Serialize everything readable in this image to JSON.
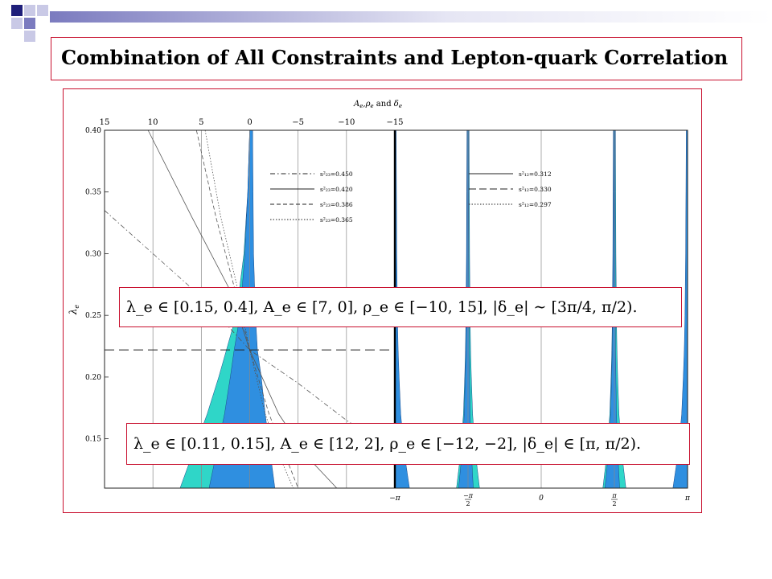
{
  "slide": {
    "title": "Combination of All Constraints and Lepton-quark Correlation",
    "colors": {
      "bullet_dark": "#1f1f7a",
      "bullet_mid": "#7b7bbf",
      "bullet_light": "#c9c9e6",
      "frame": "#c8102e",
      "band_cyan": "#2fd6c8",
      "band_blue": "#2f8fe0"
    }
  },
  "chart_data": {
    "type": "line",
    "title": "",
    "top_axis_label": "A_e, ρ_e and δ_e",
    "top_axis_label_parts": {
      "a": "A",
      "rho": "ρ",
      "delta": "δ",
      "sub": "e",
      "and1": ",",
      "and2": " and "
    },
    "ylabel": "λ_e",
    "ylabel_parts": {
      "main": "λ",
      "sub": "e"
    },
    "ylim": [
      0.11,
      0.4
    ],
    "yticks": [
      {
        "value": 0.4,
        "label": "0.40"
      },
      {
        "value": 0.35,
        "label": "0.35"
      },
      {
        "value": 0.3,
        "label": "0.30"
      },
      {
        "value": 0.25,
        "label": "0.25"
      },
      {
        "value": 0.2,
        "label": "0.20"
      },
      {
        "value": 0.15,
        "label": "0.15"
      }
    ],
    "left_panel": {
      "xlim": [
        15,
        -15
      ],
      "top_ticks": [
        {
          "value": 15,
          "label": "15"
        },
        {
          "value": 10,
          "label": "10"
        },
        {
          "value": 5,
          "label": "5"
        },
        {
          "value": 0,
          "label": "0"
        },
        {
          "value": -5,
          "label": "−5"
        },
        {
          "value": -10,
          "label": "−10"
        },
        {
          "value": -15,
          "label": "−15"
        }
      ],
      "legend": {
        "placement": "top-center",
        "entries": [
          {
            "label": "s²₂₃=0.450",
            "style": "dash-dot"
          },
          {
            "label": "s²₂₃=0.420",
            "style": "solid"
          },
          {
            "label": "s²₂₃=0.386",
            "style": "dashed"
          },
          {
            "label": "s²₂₃=0.365",
            "style": "dotted"
          }
        ]
      },
      "reference_line": {
        "y": 0.222,
        "style": "dashed"
      }
    },
    "right_panel": {
      "xlim": [
        -3.1416,
        3.1416
      ],
      "bottom_ticks": [
        {
          "value": -3.1416,
          "label": "−π"
        },
        {
          "value": -1.5708,
          "label": "−π/2"
        },
        {
          "value": 0,
          "label": "0"
        },
        {
          "value": 1.5708,
          "label": "π/2"
        },
        {
          "value": 3.1416,
          "label": "π"
        }
      ],
      "tick_parts": {
        "neg": "−",
        "pi": "π",
        "two": "2"
      },
      "legend": {
        "placement": "top-center",
        "entries": [
          {
            "label": "s²₁₂=0.312",
            "style": "solid"
          },
          {
            "label": "s²₁₂=0.330",
            "style": "long-dash"
          },
          {
            "label": "s²₁₂=0.297",
            "style": "dotted"
          }
        ]
      }
    }
  },
  "annotations": {
    "range_top": "λ_e ∈ [0.15, 0.4],  A_e ∈ [7, 0],   ρ_e ∈ [−10, 15],   |δ_e| ∼ [3π/4, π/2).",
    "range_bottom": "λ_e ∈ [0.11, 0.15],  A_e ∈ [12, 2],  ρ_e ∈ [−12, −2],   |δ_e| ∈ [π, π/2)."
  }
}
